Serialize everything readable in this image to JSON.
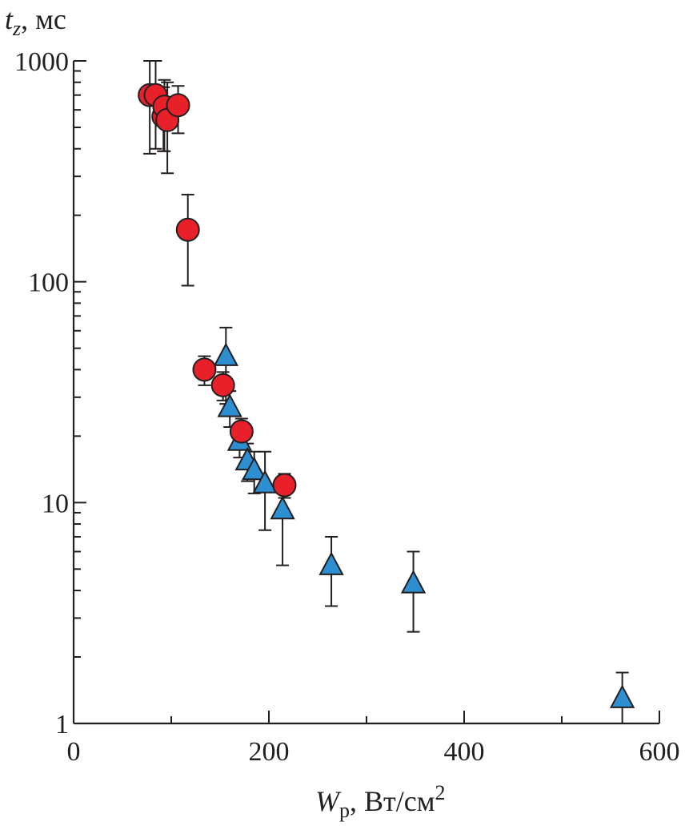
{
  "chart_data": {
    "type": "scatter",
    "title": "",
    "ylabel": {
      "symbol": "t",
      "subscript": "z",
      "unit": ", мс"
    },
    "xlabel": {
      "symbol": "W",
      "subscript": "p",
      "unit": ", Вт/см",
      "superscript": "2"
    },
    "xlim": [
      0,
      600
    ],
    "ylim": [
      1,
      1000
    ],
    "yscale": "log",
    "grid": false,
    "legend": "none",
    "x_ticks": [
      0,
      200,
      400,
      600
    ],
    "x_tick_labels": [
      "0",
      "200",
      "400",
      "600"
    ],
    "y_ticks": [
      1,
      10,
      100,
      1000
    ],
    "y_tick_labels": [
      "1",
      "10",
      "100",
      "1000"
    ],
    "series": [
      {
        "marker": "circle",
        "color": "#e8202a",
        "points": [
          {
            "x": 78,
            "y": 700,
            "err_lo": 380,
            "err_hi": 1000
          },
          {
            "x": 84,
            "y": 700,
            "err_lo": 400,
            "err_hi": 1000
          },
          {
            "x": 92,
            "y": 560,
            "err_lo": 390,
            "err_hi": 760
          },
          {
            "x": 93,
            "y": 620,
            "err_lo": 390,
            "err_hi": 820
          },
          {
            "x": 96,
            "y": 540,
            "err_lo": 310,
            "err_hi": 800
          },
          {
            "x": 107,
            "y": 630,
            "err_lo": 470,
            "err_hi": 770
          },
          {
            "x": 117,
            "y": 172,
            "err_lo": 96,
            "err_hi": 248
          },
          {
            "x": 134,
            "y": 40,
            "err_lo": 34,
            "err_hi": 46
          },
          {
            "x": 153,
            "y": 34,
            "err_lo": 29,
            "err_hi": 39
          },
          {
            "x": 172,
            "y": 21,
            "err_lo": 18,
            "err_hi": 24
          },
          {
            "x": 216,
            "y": 12,
            "err_lo": 10.5,
            "err_hi": 13.5
          }
        ]
      },
      {
        "marker": "triangle",
        "color": "#2d8ed0",
        "points": [
          {
            "x": 156,
            "y": 46,
            "err_lo": 28,
            "err_hi": 62
          },
          {
            "x": 160,
            "y": 27,
            "err_lo": 22,
            "err_hi": 32
          },
          {
            "x": 170,
            "y": 19,
            "err_lo": 16,
            "err_hi": 22
          },
          {
            "x": 178,
            "y": 15.5,
            "err_lo": 12.5,
            "err_hi": 18.5
          },
          {
            "x": 185,
            "y": 14,
            "err_lo": 11,
            "err_hi": 17
          },
          {
            "x": 196,
            "y": 12.2,
            "err_lo": 7.5,
            "err_hi": 17
          },
          {
            "x": 214,
            "y": 9.3,
            "err_lo": 5.2,
            "err_hi": 13
          },
          {
            "x": 264,
            "y": 5.2,
            "err_lo": 3.4,
            "err_hi": 7
          },
          {
            "x": 348,
            "y": 4.3,
            "err_lo": 2.6,
            "err_hi": 6
          },
          {
            "x": 562,
            "y": 1.3,
            "err_lo": 1.0,
            "err_hi": 1.7
          }
        ]
      }
    ]
  }
}
